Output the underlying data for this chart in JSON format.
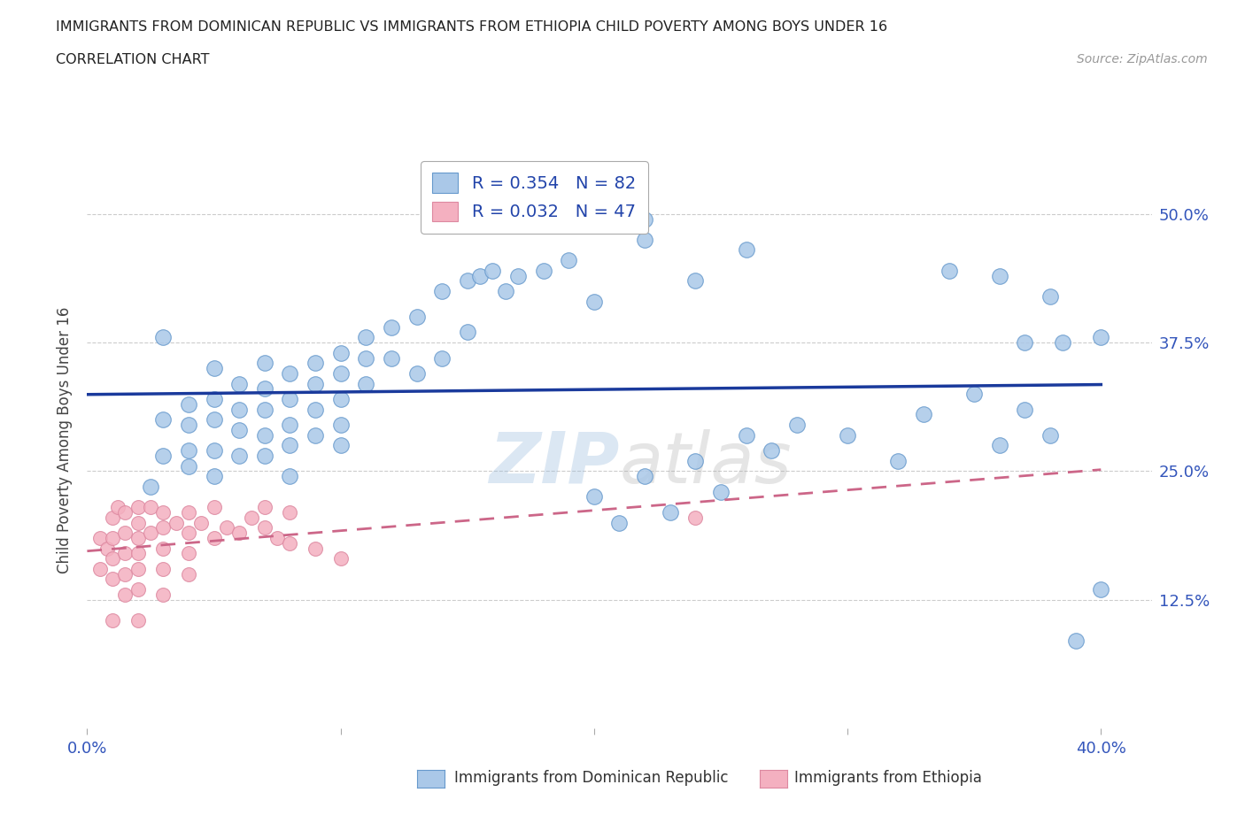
{
  "title_line1": "IMMIGRANTS FROM DOMINICAN REPUBLIC VS IMMIGRANTS FROM ETHIOPIA CHILD POVERTY AMONG BOYS UNDER 16",
  "title_line2": "CORRELATION CHART",
  "source_text": "Source: ZipAtlas.com",
  "ylabel": "Child Poverty Among Boys Under 16",
  "xlim": [
    0,
    0.42
  ],
  "ylim": [
    0,
    0.56
  ],
  "ytick_positions": [
    0.125,
    0.25,
    0.375,
    0.5
  ],
  "ytick_labels": [
    "12.5%",
    "25.0%",
    "37.5%",
    "50.0%"
  ],
  "legend_r1": "R = 0.354   N = 82",
  "legend_r2": "R = 0.032   N = 47",
  "blue_color": "#aac8e8",
  "blue_edge": "#6699cc",
  "pink_color": "#f4b0c0",
  "pink_edge": "#dd88a0",
  "blue_line_color": "#1a3a9c",
  "pink_line_color": "#cc6688",
  "watermark_zip": "ZIP",
  "watermark_atlas": "atlas",
  "blue_x": [
    0.025,
    0.03,
    0.03,
    0.03,
    0.04,
    0.04,
    0.04,
    0.04,
    0.05,
    0.05,
    0.05,
    0.05,
    0.05,
    0.06,
    0.06,
    0.06,
    0.06,
    0.07,
    0.07,
    0.07,
    0.07,
    0.07,
    0.08,
    0.08,
    0.08,
    0.08,
    0.08,
    0.09,
    0.09,
    0.09,
    0.09,
    0.1,
    0.1,
    0.1,
    0.1,
    0.1,
    0.11,
    0.11,
    0.11,
    0.12,
    0.12,
    0.13,
    0.13,
    0.14,
    0.14,
    0.15,
    0.15,
    0.155,
    0.16,
    0.165,
    0.17,
    0.18,
    0.19,
    0.2,
    0.2,
    0.21,
    0.22,
    0.22,
    0.23,
    0.24,
    0.24,
    0.25,
    0.26,
    0.26,
    0.27,
    0.28,
    0.3,
    0.32,
    0.33,
    0.34,
    0.35,
    0.36,
    0.36,
    0.37,
    0.37,
    0.38,
    0.38,
    0.385,
    0.39,
    0.4,
    0.4,
    0.22
  ],
  "blue_y": [
    0.235,
    0.265,
    0.3,
    0.38,
    0.27,
    0.295,
    0.315,
    0.255,
    0.3,
    0.32,
    0.35,
    0.27,
    0.245,
    0.31,
    0.335,
    0.29,
    0.265,
    0.33,
    0.355,
    0.31,
    0.285,
    0.265,
    0.345,
    0.32,
    0.295,
    0.275,
    0.245,
    0.355,
    0.335,
    0.31,
    0.285,
    0.365,
    0.345,
    0.32,
    0.295,
    0.275,
    0.38,
    0.36,
    0.335,
    0.39,
    0.36,
    0.4,
    0.345,
    0.36,
    0.425,
    0.435,
    0.385,
    0.44,
    0.445,
    0.425,
    0.44,
    0.445,
    0.455,
    0.415,
    0.225,
    0.2,
    0.245,
    0.475,
    0.21,
    0.26,
    0.435,
    0.23,
    0.285,
    0.465,
    0.27,
    0.295,
    0.285,
    0.26,
    0.305,
    0.445,
    0.325,
    0.275,
    0.44,
    0.375,
    0.31,
    0.285,
    0.42,
    0.375,
    0.085,
    0.135,
    0.38,
    0.495
  ],
  "pink_x": [
    0.005,
    0.005,
    0.008,
    0.01,
    0.01,
    0.01,
    0.01,
    0.01,
    0.012,
    0.015,
    0.015,
    0.015,
    0.015,
    0.015,
    0.02,
    0.02,
    0.02,
    0.02,
    0.02,
    0.02,
    0.02,
    0.025,
    0.025,
    0.03,
    0.03,
    0.03,
    0.03,
    0.03,
    0.035,
    0.04,
    0.04,
    0.04,
    0.04,
    0.045,
    0.05,
    0.05,
    0.055,
    0.06,
    0.065,
    0.07,
    0.07,
    0.075,
    0.08,
    0.08,
    0.09,
    0.1,
    0.24
  ],
  "pink_y": [
    0.185,
    0.155,
    0.175,
    0.205,
    0.185,
    0.165,
    0.145,
    0.105,
    0.215,
    0.21,
    0.19,
    0.17,
    0.15,
    0.13,
    0.215,
    0.2,
    0.185,
    0.17,
    0.155,
    0.135,
    0.105,
    0.215,
    0.19,
    0.21,
    0.195,
    0.175,
    0.155,
    0.13,
    0.2,
    0.21,
    0.19,
    0.17,
    0.15,
    0.2,
    0.215,
    0.185,
    0.195,
    0.19,
    0.205,
    0.215,
    0.195,
    0.185,
    0.21,
    0.18,
    0.175,
    0.165,
    0.205
  ],
  "xticklabel_color": "#3355bb"
}
